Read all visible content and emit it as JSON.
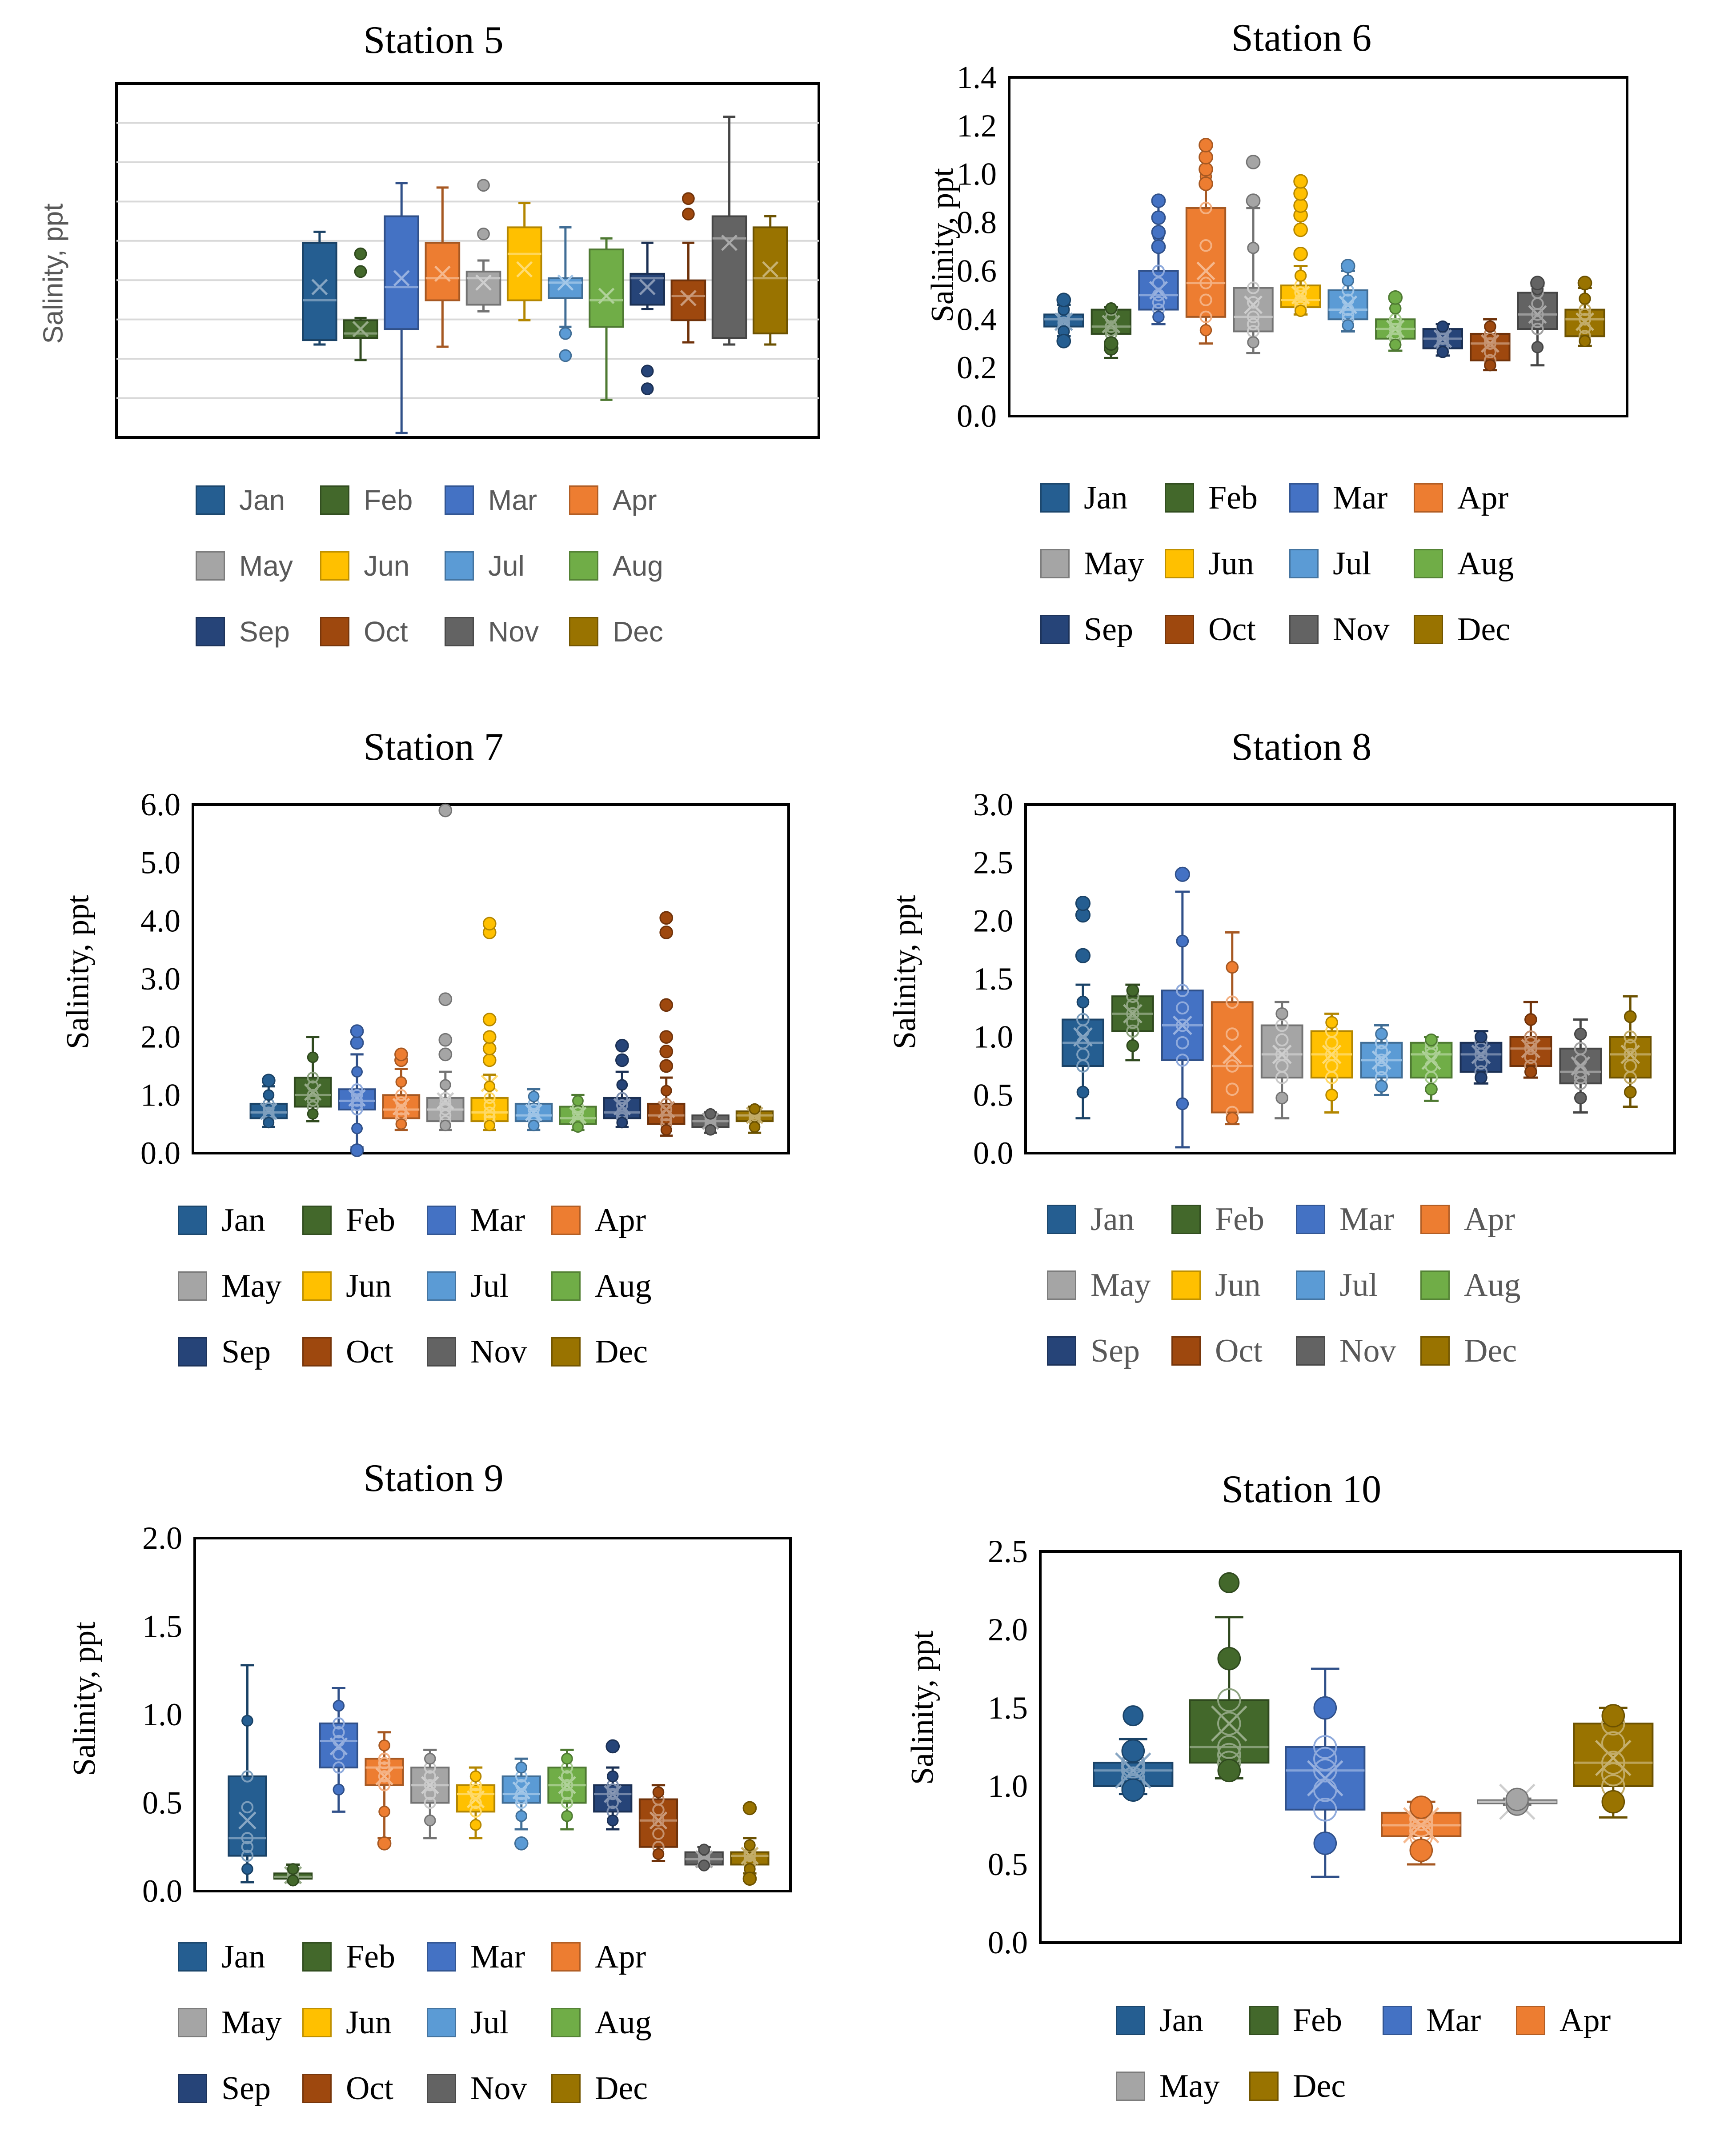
{
  "colors": {
    "Jan": "#255E91",
    "Feb": "#43682B",
    "Mar": "#4472C4",
    "Apr": "#ED7D31",
    "May": "#A5A5A5",
    "Jun": "#FFC000",
    "Jul": "#5B9BD5",
    "Aug": "#70AD47",
    "Sep": "#264478",
    "Oct": "#9E480E",
    "Nov": "#636363",
    "Dec": "#997300"
  },
  "chart_data": [
    {
      "type": "box",
      "title": "Station 5",
      "ylabel": "Salinity, ppt",
      "ylim": [
        0,
        1.6
      ],
      "yticks": [],
      "show_tick_labels": false,
      "grid": true,
      "legend": [
        "Jan",
        "Feb",
        "Mar",
        "Apr",
        "May",
        "Jun",
        "Jul",
        "Aug",
        "Sep",
        "Oct",
        "Nov",
        "Dec"
      ],
      "months": [
        {
          "m": "Jan",
          "min": 0.42,
          "q1": 0.44,
          "med": 0.62,
          "q3": 0.88,
          "max": 0.93,
          "mean": 0.68,
          "out": []
        },
        {
          "m": "Feb",
          "min": 0.35,
          "q1": 0.45,
          "med": 0.47,
          "q3": 0.53,
          "max": 0.54,
          "mean": 0.49,
          "out": [
            0.75,
            0.83
          ]
        },
        {
          "m": "Mar",
          "min": 0.02,
          "q1": 0.49,
          "med": 0.68,
          "q3": 1.0,
          "max": 1.15,
          "mean": 0.72,
          "out": []
        },
        {
          "m": "Apr",
          "min": 0.41,
          "q1": 0.62,
          "med": 0.72,
          "q3": 0.88,
          "max": 1.13,
          "mean": 0.74,
          "out": []
        },
        {
          "m": "May",
          "min": 0.57,
          "q1": 0.6,
          "med": 0.72,
          "q3": 0.75,
          "max": 0.8,
          "mean": 0.7,
          "out": [
            0.92,
            1.14
          ]
        },
        {
          "m": "Jun",
          "min": 0.53,
          "q1": 0.62,
          "med": 0.83,
          "q3": 0.95,
          "max": 1.06,
          "mean": 0.76,
          "out": []
        },
        {
          "m": "Jul",
          "min": 0.5,
          "q1": 0.63,
          "med": 0.7,
          "q3": 0.72,
          "max": 0.95,
          "mean": 0.7,
          "out": [
            0.37,
            0.47
          ]
        },
        {
          "m": "Aug",
          "min": 0.17,
          "q1": 0.5,
          "med": 0.62,
          "q3": 0.85,
          "max": 0.9,
          "mean": 0.64,
          "out": []
        },
        {
          "m": "Sep",
          "min": 0.58,
          "q1": 0.6,
          "med": 0.72,
          "q3": 0.74,
          "max": 0.88,
          "mean": 0.68,
          "out": [
            0.22,
            0.3
          ]
        },
        {
          "m": "Oct",
          "min": 0.43,
          "q1": 0.53,
          "med": 0.64,
          "q3": 0.71,
          "max": 0.88,
          "mean": 0.63,
          "out": [
            1.01,
            1.08
          ]
        },
        {
          "m": "Nov",
          "min": 0.42,
          "q1": 0.45,
          "med": 0.9,
          "q3": 1.0,
          "max": 1.45,
          "mean": 0.88,
          "out": []
        },
        {
          "m": "Dec",
          "min": 0.42,
          "q1": 0.47,
          "med": 0.72,
          "q3": 0.95,
          "max": 1.0,
          "mean": 0.76,
          "out": []
        }
      ]
    },
    {
      "type": "box",
      "title": "Station 6",
      "ylabel": "Salinity, ppt",
      "ylim": [
        0,
        1.4
      ],
      "yticks": [
        "0.0",
        "0.2",
        "0.4",
        "0.6",
        "0.8",
        "1.0",
        "1.2",
        "1.4"
      ],
      "show_tick_labels": true,
      "grid": false,
      "legend": [
        "Jan",
        "Feb",
        "Mar",
        "Apr",
        "May",
        "Jun",
        "Jul",
        "Aug",
        "Sep",
        "Oct",
        "Nov",
        "Dec"
      ],
      "months": [
        {
          "m": "Jan",
          "min": 0.33,
          "q1": 0.37,
          "med": 0.4,
          "q3": 0.42,
          "max": 0.46,
          "mean": 0.39,
          "out": [
            0.31,
            0.48
          ]
        },
        {
          "m": "Feb",
          "min": 0.24,
          "q1": 0.34,
          "med": 0.37,
          "q3": 0.44,
          "max": 0.45,
          "mean": 0.38,
          "out": [
            0.28,
            0.3
          ]
        },
        {
          "m": "Mar",
          "min": 0.38,
          "q1": 0.44,
          "med": 0.5,
          "q3": 0.6,
          "max": 0.89,
          "mean": 0.52,
          "out": [
            0.7,
            0.76,
            0.82,
            0.89
          ]
        },
        {
          "m": "Apr",
          "min": 0.3,
          "q1": 0.41,
          "med": 0.55,
          "q3": 0.86,
          "max": 1.12,
          "mean": 0.6,
          "out": [
            0.96,
            1.02,
            1.07,
            1.12
          ]
        },
        {
          "m": "May",
          "min": 0.26,
          "q1": 0.35,
          "med": 0.41,
          "q3": 0.53,
          "max": 0.86,
          "mean": 0.46,
          "out": [
            0.89,
            1.05
          ]
        },
        {
          "m": "Jun",
          "min": 0.42,
          "q1": 0.45,
          "med": 0.48,
          "q3": 0.54,
          "max": 0.62,
          "mean": 0.5,
          "out": [
            0.67,
            0.77,
            0.83,
            0.87,
            0.92,
            0.97
          ]
        },
        {
          "m": "Jul",
          "min": 0.35,
          "q1": 0.4,
          "med": 0.44,
          "q3": 0.52,
          "max": 0.6,
          "mean": 0.46,
          "out": [
            0.62
          ]
        },
        {
          "m": "Aug",
          "min": 0.27,
          "q1": 0.32,
          "med": 0.36,
          "q3": 0.4,
          "max": 0.49,
          "mean": 0.36,
          "out": [
            0.49
          ]
        },
        {
          "m": "Sep",
          "min": 0.25,
          "q1": 0.28,
          "med": 0.32,
          "q3": 0.36,
          "max": 0.38,
          "mean": 0.32,
          "out": []
        },
        {
          "m": "Oct",
          "min": 0.19,
          "q1": 0.23,
          "med": 0.3,
          "q3": 0.34,
          "max": 0.4,
          "mean": 0.3,
          "out": []
        },
        {
          "m": "Nov",
          "min": 0.21,
          "q1": 0.36,
          "med": 0.42,
          "q3": 0.51,
          "max": 0.54,
          "mean": 0.42,
          "out": [
            0.55
          ]
        },
        {
          "m": "Dec",
          "min": 0.29,
          "q1": 0.33,
          "med": 0.4,
          "q3": 0.44,
          "max": 0.53,
          "mean": 0.39,
          "out": [
            0.55
          ]
        }
      ]
    },
    {
      "type": "box",
      "title": "Station 7",
      "ylabel": "Salinity, ppt",
      "ylim": [
        0,
        6
      ],
      "yticks": [
        "0.0",
        "1.0",
        "2.0",
        "3.0",
        "4.0",
        "5.0",
        "6.0"
      ],
      "show_tick_labels": true,
      "grid": false,
      "legend": [
        "Jan",
        "Feb",
        "Mar",
        "Apr",
        "May",
        "Jun",
        "Jul",
        "Aug",
        "Sep",
        "Oct",
        "Nov",
        "Dec"
      ],
      "months": [
        {
          "m": "Jan",
          "min": 0.45,
          "q1": 0.6,
          "med": 0.7,
          "q3": 0.85,
          "max": 1.15,
          "mean": 0.72,
          "out": [
            1.25
          ]
        },
        {
          "m": "Feb",
          "min": 0.55,
          "q1": 0.8,
          "med": 1.0,
          "q3": 1.3,
          "max": 2.0,
          "mean": 1.05,
          "out": []
        },
        {
          "m": "Mar",
          "min": 0.1,
          "q1": 0.75,
          "med": 0.9,
          "q3": 1.1,
          "max": 1.7,
          "mean": 0.95,
          "out": [
            1.9,
            2.1,
            0.05
          ]
        },
        {
          "m": "Apr",
          "min": 0.4,
          "q1": 0.6,
          "med": 0.75,
          "q3": 1.0,
          "max": 1.45,
          "mean": 0.8,
          "out": [
            1.6,
            1.7
          ]
        },
        {
          "m": "May",
          "min": 0.4,
          "q1": 0.55,
          "med": 0.75,
          "q3": 0.95,
          "max": 1.4,
          "mean": 0.9,
          "out": [
            1.7,
            1.95,
            2.65,
            5.9
          ]
        },
        {
          "m": "Jun",
          "min": 0.4,
          "q1": 0.55,
          "med": 0.7,
          "q3": 0.95,
          "max": 1.35,
          "mean": 1.2,
          "out": [
            1.6,
            1.8,
            2.0,
            2.3,
            3.8,
            3.95
          ]
        },
        {
          "m": "Jul",
          "min": 0.4,
          "q1": 0.55,
          "med": 0.65,
          "q3": 0.85,
          "max": 1.1,
          "mean": 0.7,
          "out": []
        },
        {
          "m": "Aug",
          "min": 0.4,
          "q1": 0.5,
          "med": 0.6,
          "q3": 0.8,
          "max": 1.0,
          "mean": 0.65,
          "out": []
        },
        {
          "m": "Sep",
          "min": 0.45,
          "q1": 0.6,
          "med": 0.7,
          "q3": 0.95,
          "max": 1.4,
          "mean": 0.8,
          "out": [
            1.6,
            1.85
          ]
        },
        {
          "m": "Oct",
          "min": 0.3,
          "q1": 0.5,
          "med": 0.65,
          "q3": 0.85,
          "max": 1.3,
          "mean": 0.75,
          "out": [
            1.5,
            1.75,
            2.0,
            2.55,
            3.8,
            4.05
          ]
        },
        {
          "m": "Nov",
          "min": 0.35,
          "q1": 0.45,
          "med": 0.55,
          "q3": 0.65,
          "max": 0.7,
          "mean": 0.55,
          "out": []
        },
        {
          "m": "Dec",
          "min": 0.35,
          "q1": 0.55,
          "med": 0.65,
          "q3": 0.72,
          "max": 0.8,
          "mean": 0.65,
          "out": []
        }
      ]
    },
    {
      "type": "box",
      "title": "Station 8",
      "ylabel": "Salinity, ppt",
      "ylim": [
        0,
        3
      ],
      "yticks": [
        "0.0",
        "0.5",
        "1.0",
        "1.5",
        "2.0",
        "2.5",
        "3.0"
      ],
      "show_tick_labels": true,
      "grid": false,
      "legend": [
        "Jan",
        "Feb",
        "Mar",
        "Apr",
        "May",
        "Jun",
        "Jul",
        "Aug",
        "Sep",
        "Oct",
        "Nov",
        "Dec"
      ],
      "months": [
        {
          "m": "Jan",
          "min": 0.3,
          "q1": 0.75,
          "med": 0.95,
          "q3": 1.15,
          "max": 1.45,
          "mean": 1.0,
          "out": [
            1.7,
            2.05,
            2.15
          ]
        },
        {
          "m": "Feb",
          "min": 0.8,
          "q1": 1.05,
          "med": 1.2,
          "q3": 1.35,
          "max": 1.45,
          "mean": 1.2,
          "out": []
        },
        {
          "m": "Mar",
          "min": 0.05,
          "q1": 0.8,
          "med": 1.1,
          "q3": 1.4,
          "max": 2.25,
          "mean": 1.1,
          "out": [
            2.4
          ]
        },
        {
          "m": "Apr",
          "min": 0.25,
          "q1": 0.35,
          "med": 0.75,
          "q3": 1.3,
          "max": 1.9,
          "mean": 0.85,
          "out": []
        },
        {
          "m": "May",
          "min": 0.3,
          "q1": 0.65,
          "med": 0.85,
          "q3": 1.1,
          "max": 1.3,
          "mean": 0.85,
          "out": []
        },
        {
          "m": "Jun",
          "min": 0.35,
          "q1": 0.65,
          "med": 0.85,
          "q3": 1.05,
          "max": 1.2,
          "mean": 0.85,
          "out": []
        },
        {
          "m": "Jul",
          "min": 0.5,
          "q1": 0.65,
          "med": 0.8,
          "q3": 0.95,
          "max": 1.1,
          "mean": 0.8,
          "out": []
        },
        {
          "m": "Aug",
          "min": 0.45,
          "q1": 0.65,
          "med": 0.85,
          "q3": 0.95,
          "max": 1.0,
          "mean": 0.8,
          "out": []
        },
        {
          "m": "Sep",
          "min": 0.6,
          "q1": 0.7,
          "med": 0.85,
          "q3": 0.95,
          "max": 1.05,
          "mean": 0.85,
          "out": []
        },
        {
          "m": "Oct",
          "min": 0.65,
          "q1": 0.75,
          "med": 0.9,
          "q3": 1.0,
          "max": 1.3,
          "mean": 0.9,
          "out": []
        },
        {
          "m": "Nov",
          "min": 0.35,
          "q1": 0.6,
          "med": 0.7,
          "q3": 0.9,
          "max": 1.15,
          "mean": 0.75,
          "out": []
        },
        {
          "m": "Dec",
          "min": 0.4,
          "q1": 0.65,
          "med": 0.85,
          "q3": 1.0,
          "max": 1.35,
          "mean": 0.85,
          "out": []
        }
      ]
    },
    {
      "type": "box",
      "title": "Station 9",
      "ylabel": "Salinity, ppt",
      "ylim": [
        0,
        2
      ],
      "yticks": [
        "0.0",
        "0.5",
        "1.0",
        "1.5",
        "2.0"
      ],
      "show_tick_labels": true,
      "grid": false,
      "legend": [
        "Jan",
        "Feb",
        "Mar",
        "Apr",
        "May",
        "Jun",
        "Jul",
        "Aug",
        "Sep",
        "Oct",
        "Nov",
        "Dec"
      ],
      "months": [
        {
          "m": "Jan",
          "min": 0.05,
          "q1": 0.2,
          "med": 0.3,
          "q3": 0.65,
          "max": 1.28,
          "mean": 0.4,
          "out": []
        },
        {
          "m": "Feb",
          "min": 0.05,
          "q1": 0.07,
          "med": 0.08,
          "q3": 0.1,
          "max": 0.15,
          "mean": 0.09,
          "out": []
        },
        {
          "m": "Mar",
          "min": 0.45,
          "q1": 0.7,
          "med": 0.85,
          "q3": 0.95,
          "max": 1.15,
          "mean": 0.82,
          "out": []
        },
        {
          "m": "Apr",
          "min": 0.3,
          "q1": 0.6,
          "med": 0.7,
          "q3": 0.75,
          "max": 0.9,
          "mean": 0.65,
          "out": [
            0.27
          ]
        },
        {
          "m": "May",
          "min": 0.3,
          "q1": 0.5,
          "med": 0.6,
          "q3": 0.7,
          "max": 0.8,
          "mean": 0.6,
          "out": []
        },
        {
          "m": "Jun",
          "min": 0.3,
          "q1": 0.45,
          "med": 0.55,
          "q3": 0.6,
          "max": 0.7,
          "mean": 0.52,
          "out": []
        },
        {
          "m": "Jul",
          "min": 0.35,
          "q1": 0.5,
          "med": 0.55,
          "q3": 0.65,
          "max": 0.75,
          "mean": 0.57,
          "out": [
            0.27
          ]
        },
        {
          "m": "Aug",
          "min": 0.35,
          "q1": 0.5,
          "med": 0.6,
          "q3": 0.7,
          "max": 0.8,
          "mean": 0.6,
          "out": []
        },
        {
          "m": "Sep",
          "min": 0.35,
          "q1": 0.45,
          "med": 0.55,
          "q3": 0.6,
          "max": 0.7,
          "mean": 0.55,
          "out": [
            0.82
          ]
        },
        {
          "m": "Oct",
          "min": 0.17,
          "q1": 0.25,
          "med": 0.4,
          "q3": 0.52,
          "max": 0.6,
          "mean": 0.4,
          "out": []
        },
        {
          "m": "Nov",
          "min": 0.14,
          "q1": 0.15,
          "med": 0.18,
          "q3": 0.22,
          "max": 0.25,
          "mean": 0.18,
          "out": []
        },
        {
          "m": "Dec",
          "min": 0.1,
          "q1": 0.15,
          "med": 0.2,
          "q3": 0.22,
          "max": 0.3,
          "mean": 0.2,
          "out": [
            0.47,
            0.07
          ]
        }
      ]
    },
    {
      "type": "box",
      "title": "Station 10",
      "ylabel": "Salinity, ppt",
      "ylim": [
        0,
        2.5
      ],
      "yticks": [
        "0.0",
        "0.5",
        "1.0",
        "1.5",
        "2.0",
        "2.5"
      ],
      "show_tick_labels": true,
      "grid": false,
      "legend": [
        "Jan",
        "Feb",
        "Mar",
        "Apr",
        "May",
        "Dec"
      ],
      "months": [
        {
          "m": "Jan",
          "min": 0.95,
          "q1": 1.0,
          "med": 1.1,
          "q3": 1.15,
          "max": 1.3,
          "mean": 1.1,
          "out": [
            1.45
          ]
        },
        {
          "m": "Feb",
          "min": 1.05,
          "q1": 1.15,
          "med": 1.25,
          "q3": 1.55,
          "max": 2.08,
          "mean": 1.4,
          "out": [
            2.3
          ]
        },
        {
          "m": "Mar",
          "min": 0.42,
          "q1": 0.85,
          "med": 1.1,
          "q3": 1.25,
          "max": 1.75,
          "mean": 1.05,
          "out": []
        },
        {
          "m": "Apr",
          "min": 0.5,
          "q1": 0.68,
          "med": 0.75,
          "q3": 0.83,
          "max": 0.9,
          "mean": 0.75,
          "out": []
        },
        {
          "m": "May",
          "min": 0.88,
          "q1": 0.89,
          "med": 0.9,
          "q3": 0.91,
          "max": 0.92,
          "mean": 0.9,
          "out": []
        },
        {
          "m": "Dec",
          "min": 0.8,
          "q1": 1.0,
          "med": 1.15,
          "q3": 1.4,
          "max": 1.5,
          "mean": 1.18,
          "out": []
        }
      ]
    }
  ]
}
